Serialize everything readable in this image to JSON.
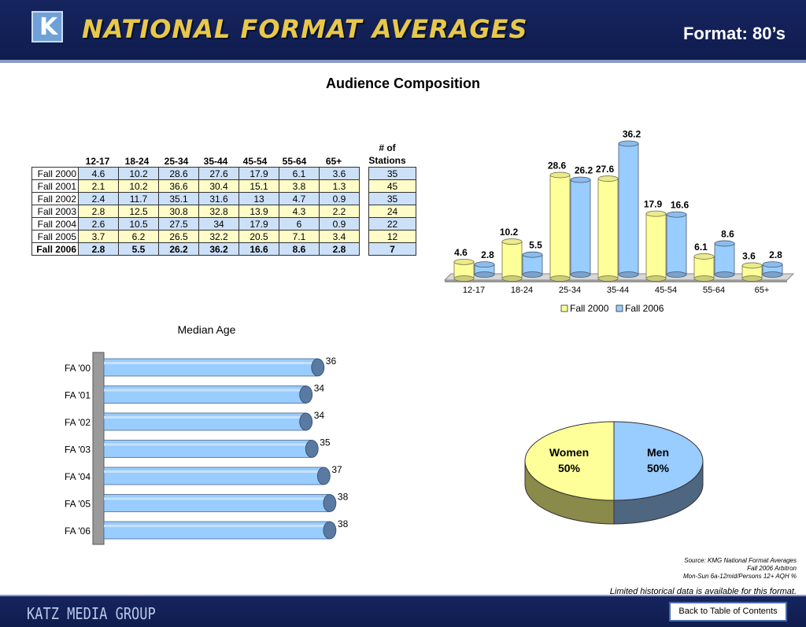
{
  "header": {
    "logo_letter": "K",
    "title": "NATIONAL FORMAT AVERAGES",
    "format_label": "Format: 80’s"
  },
  "page_title": "Audience Composition",
  "table": {
    "columns": [
      "12-17",
      "18-24",
      "25-34",
      "35-44",
      "45-54",
      "55-64",
      "65+"
    ],
    "stations_header_line1": "# of",
    "stations_header_line2": "Stations",
    "rows": [
      {
        "label": "Fall 2000",
        "values": [
          "4.6",
          "10.2",
          "28.6",
          "27.6",
          "17.9",
          "6.1",
          "3.6"
        ],
        "stations": "35"
      },
      {
        "label": "Fall 2001",
        "values": [
          "2.1",
          "10.2",
          "36.6",
          "30.4",
          "15.1",
          "3.8",
          "1.3"
        ],
        "stations": "45"
      },
      {
        "label": "Fall 2002",
        "values": [
          "2.4",
          "11.7",
          "35.1",
          "31.6",
          "13",
          "4.7",
          "0.9"
        ],
        "stations": "35"
      },
      {
        "label": "Fall 2003",
        "values": [
          "2.8",
          "12.5",
          "30.8",
          "32.8",
          "13.9",
          "4.3",
          "2.2"
        ],
        "stations": "24"
      },
      {
        "label": "Fall 2004",
        "values": [
          "2.6",
          "10.5",
          "27.5",
          "34",
          "17.9",
          "6",
          "0.9"
        ],
        "stations": "22"
      },
      {
        "label": "Fall 2005",
        "values": [
          "3.7",
          "6.2",
          "26.5",
          "32.2",
          "20.5",
          "7.1",
          "3.4"
        ],
        "stations": "12"
      },
      {
        "label": "Fall 2006",
        "values": [
          "2.8",
          "5.5",
          "26.2",
          "36.2",
          "16.6",
          "8.6",
          "2.8"
        ],
        "stations": "7"
      }
    ]
  },
  "chart_data": [
    {
      "type": "bar",
      "categories": [
        "12-17",
        "18-24",
        "25-34",
        "35-44",
        "45-54",
        "55-64",
        "65+"
      ],
      "series": [
        {
          "name": "Fall 2000",
          "values": [
            4.6,
            10.2,
            28.6,
            27.6,
            17.9,
            6.1,
            3.6
          ],
          "color": "#ffff99"
        },
        {
          "name": "Fall 2006",
          "values": [
            2.8,
            5.5,
            26.2,
            36.2,
            16.6,
            8.6,
            2.8
          ],
          "color": "#99ccff"
        }
      ],
      "ylim": [
        0,
        40
      ],
      "legend": "bottom",
      "grid": false
    },
    {
      "type": "bar",
      "orientation": "horizontal",
      "title": "Median Age",
      "categories": [
        "FA '00",
        "FA '01",
        "FA '02",
        "FA '03",
        "FA '04",
        "FA '05",
        "FA '06"
      ],
      "values": [
        36,
        34,
        34,
        35,
        37,
        38,
        38
      ],
      "color": "#99ccff"
    },
    {
      "type": "pie",
      "labels": [
        "Women",
        "Men"
      ],
      "values": [
        50,
        50
      ],
      "value_labels": [
        "50%",
        "50%"
      ],
      "colors": [
        "#ffff99",
        "#99ccff"
      ]
    }
  ],
  "source_lines": [
    "Source:  KMG National Format Averages",
    "Fall 2006 Arbitron",
    "Mon-Sun 6a-12mid/Persons 12+ AQH %"
  ],
  "limited_note": "Limited historical data is available for this format.",
  "footer": {
    "company": "KATZ MEDIA GROUP",
    "back_button": "Back to Table of Contents"
  }
}
